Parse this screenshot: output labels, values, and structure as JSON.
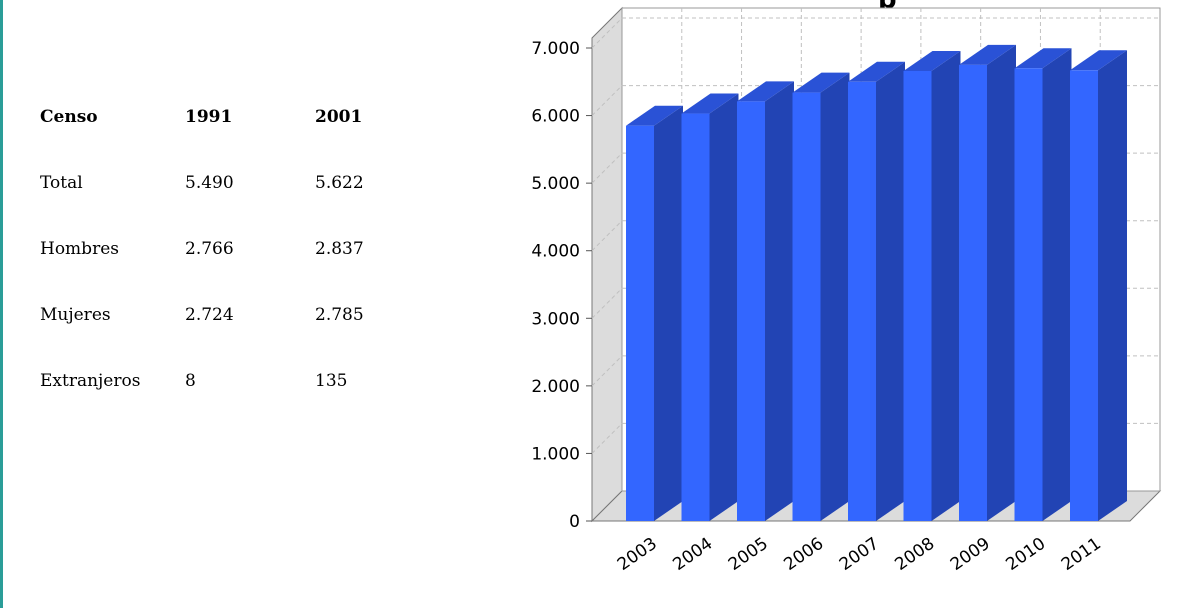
{
  "census_table": {
    "headers": [
      "Censo",
      "1991",
      "2001"
    ],
    "rows": [
      [
        "Total",
        "5.490",
        "5.622"
      ],
      [
        "Hombres",
        "2.766",
        "2.837"
      ],
      [
        "Mujeres",
        "2.724",
        "2.785"
      ],
      [
        "Extranjeros",
        "8",
        "135"
      ]
    ]
  },
  "chart_data": {
    "type": "bar",
    "title": "p",
    "categories": [
      "2003",
      "2004",
      "2005",
      "2006",
      "2007",
      "2008",
      "2009",
      "2010",
      "2011"
    ],
    "values": [
      5850,
      6030,
      6210,
      6340,
      6500,
      6660,
      6750,
      6700,
      6670
    ],
    "ylim": [
      0,
      7000
    ],
    "yticks": [
      "0",
      "1.000",
      "2.000",
      "3.000",
      "4.000",
      "5.000",
      "6.000",
      "7.000"
    ],
    "grid": true,
    "style": "3d",
    "colors": {
      "bar_front": "#3366ff",
      "bar_side": "#2244b4",
      "bar_top": "#2a52d6",
      "wall": "#dcdcdc",
      "grid": "#c0c0c0"
    }
  }
}
